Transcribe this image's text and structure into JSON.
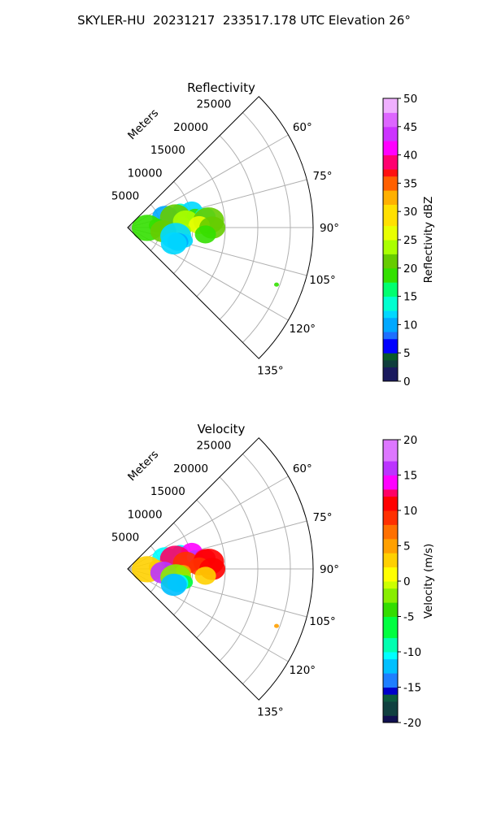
{
  "figure": {
    "title": "SKYLER-HU  20231217  233517.178 UTC Elevation 26°"
  },
  "chart_data": [
    {
      "type": "heatmap",
      "subtype": "polar-sector",
      "title": "Reflectivity",
      "range_label": "Meters",
      "range_ticks": [
        5000,
        10000,
        15000,
        20000,
        25000
      ],
      "range_max": 28500,
      "azimuth_range_deg": [
        45,
        135
      ],
      "azimuth_ticks": [
        "60°",
        "75°",
        "90°",
        "105°",
        "120°",
        "135°"
      ],
      "grid": true,
      "colorbar": {
        "label": "Reflectivity dBZ",
        "min": 0,
        "max": 50,
        "ticks": [
          0,
          5,
          10,
          15,
          20,
          25,
          30,
          35,
          40,
          45,
          50
        ]
      },
      "echoes": [
        {
          "azimuth_deg": 72,
          "range_m": 8500,
          "value": 14
        },
        {
          "azimuth_deg": 75,
          "range_m": 10200,
          "value": 12
        },
        {
          "azimuth_deg": 74,
          "range_m": 6000,
          "value": 10
        },
        {
          "azimuth_deg": 78,
          "range_m": 7500,
          "value": 21
        },
        {
          "azimuth_deg": 80,
          "range_m": 10500,
          "value": 19
        },
        {
          "azimuth_deg": 82,
          "range_m": 12000,
          "value": 14
        },
        {
          "azimuth_deg": 84,
          "range_m": 9000,
          "value": 23
        },
        {
          "azimuth_deg": 85,
          "range_m": 12500,
          "value": 21
        },
        {
          "azimuth_deg": 86,
          "range_m": 4500,
          "value": 19
        },
        {
          "azimuth_deg": 88,
          "range_m": 11000,
          "value": 25
        },
        {
          "azimuth_deg": 90,
          "range_m": 13000,
          "value": 22
        },
        {
          "azimuth_deg": 91,
          "range_m": 3000,
          "value": 17
        },
        {
          "azimuth_deg": 93,
          "range_m": 8500,
          "value": 24
        },
        {
          "azimuth_deg": 95,
          "range_m": 12000,
          "value": 18
        },
        {
          "azimuth_deg": 96,
          "range_m": 5500,
          "value": 20
        },
        {
          "azimuth_deg": 100,
          "range_m": 7500,
          "value": 12
        },
        {
          "azimuth_deg": 103,
          "range_m": 9000,
          "value": 11
        },
        {
          "azimuth_deg": 106,
          "range_m": 8000,
          "value": 10
        },
        {
          "azimuth_deg": 109,
          "range_m": 7500,
          "value": 12
        },
        {
          "azimuth_deg": 111,
          "range_m": 24500,
          "value": 19
        }
      ]
    },
    {
      "type": "heatmap",
      "subtype": "polar-sector",
      "title": "Velocity",
      "range_label": "Meters",
      "range_ticks": [
        5000,
        10000,
        15000,
        20000,
        25000
      ],
      "range_max": 28500,
      "azimuth_range_deg": [
        45,
        135
      ],
      "azimuth_ticks": [
        "60°",
        "75°",
        "90°",
        "105°",
        "120°",
        "135°"
      ],
      "grid": true,
      "colorbar": {
        "label": "Velocity (m/s)",
        "min": -20,
        "max": 20,
        "ticks": [
          -20,
          -15,
          -10,
          -5,
          0,
          5,
          10,
          15,
          20
        ]
      },
      "echoes": [
        {
          "azimuth_deg": 72,
          "range_m": 8500,
          "value": -11
        },
        {
          "azimuth_deg": 75,
          "range_m": 10200,
          "value": 14
        },
        {
          "azimuth_deg": 74,
          "range_m": 6000,
          "value": -10
        },
        {
          "azimuth_deg": 78,
          "range_m": 7500,
          "value": 12
        },
        {
          "azimuth_deg": 80,
          "range_m": 10500,
          "value": 15
        },
        {
          "azimuth_deg": 82,
          "range_m": 12000,
          "value": 13
        },
        {
          "azimuth_deg": 84,
          "range_m": 9000,
          "value": 8
        },
        {
          "azimuth_deg": 85,
          "range_m": 12500,
          "value": 10
        },
        {
          "azimuth_deg": 86,
          "range_m": 4500,
          "value": 5
        },
        {
          "azimuth_deg": 88,
          "range_m": 11000,
          "value": 9
        },
        {
          "azimuth_deg": 90,
          "range_m": 13000,
          "value": 10
        },
        {
          "azimuth_deg": 91,
          "range_m": 3000,
          "value": 3
        },
        {
          "azimuth_deg": 93,
          "range_m": 8500,
          "value": 4
        },
        {
          "azimuth_deg": 95,
          "range_m": 12000,
          "value": 2
        },
        {
          "azimuth_deg": 96,
          "range_m": 5500,
          "value": 15
        },
        {
          "azimuth_deg": 100,
          "range_m": 7500,
          "value": -3
        },
        {
          "azimuth_deg": 103,
          "range_m": 9000,
          "value": -7
        },
        {
          "azimuth_deg": 106,
          "range_m": 8000,
          "value": -10
        },
        {
          "azimuth_deg": 109,
          "range_m": 7500,
          "value": -12
        },
        {
          "azimuth_deg": 111,
          "range_m": 24500,
          "value": 4
        }
      ]
    }
  ]
}
